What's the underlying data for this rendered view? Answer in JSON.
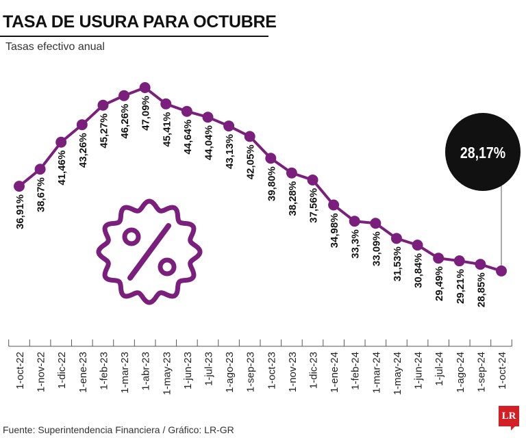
{
  "header": {
    "title": "TASA DE USURA PARA OCTUBRE",
    "subtitle": "Tasas efectivo anual"
  },
  "footer": {
    "source": "Fuente: Superintendencia Financiera / Gráfico: LR-GR",
    "logo": "LR"
  },
  "colors": {
    "series": "#7b1f7d",
    "highlight": "#111111",
    "logo": "#d32027"
  },
  "icons": {
    "badge": "percent-badge-icon"
  },
  "chart_data": {
    "type": "line",
    "title": "TASA DE USURA PARA OCTUBRE",
    "subtitle": "Tasas efectivo anual",
    "xlabel": "",
    "ylabel": "",
    "categories": [
      "1-oct-22",
      "1-nov-22",
      "1-dic-22",
      "1-ene-23",
      "1-feb-23",
      "1-mar-23",
      "1-abr-23",
      "1-may-23",
      "1-jun-23",
      "1-jul-23",
      "1-ago-23",
      "1-sep-23",
      "1-oct-23",
      "1-nov-23",
      "1-dic-23",
      "1-ene-24",
      "1-feb-24",
      "1-mar-24",
      "1-may-24",
      "1-jun-24",
      "1-jul-24",
      "1-ago-24",
      "1-sep-24",
      "1-oct-24"
    ],
    "values": [
      36.91,
      38.67,
      41.46,
      43.26,
      45.27,
      46.26,
      47.09,
      45.41,
      44.64,
      44.04,
      43.13,
      42.05,
      39.8,
      38.28,
      37.56,
      34.98,
      33.3,
      33.09,
      31.53,
      30.84,
      29.49,
      29.21,
      28.85,
      28.17
    ],
    "labels": [
      "36,91%",
      "38,67%",
      "41,46%",
      "43,26%",
      "45,27%",
      "46,26%",
      "47,09%",
      "45,41%",
      "44,64%",
      "44,04%",
      "43,13%",
      "42,05%",
      "39,80%",
      "38,28%",
      "37,56%",
      "34,98%",
      "33,3%",
      "33,09%",
      "31,53%",
      "30,84%",
      "29,49%",
      "29,21%",
      "28,85%"
    ],
    "highlight": {
      "label": "28,17%",
      "index": 23
    },
    "grid": false,
    "legend": "none"
  }
}
